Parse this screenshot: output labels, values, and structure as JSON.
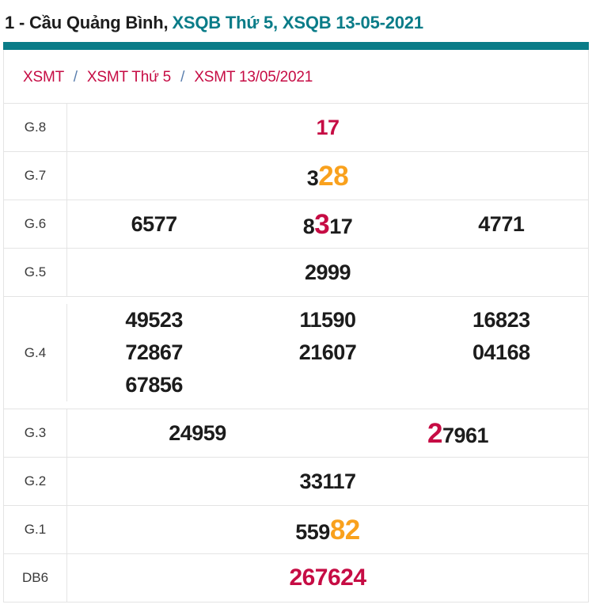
{
  "header": {
    "title_prefix": "1 - Cầu Quảng Bình,",
    "title_highlight": "XSQB Thứ 5, XSQB 13-05-2021"
  },
  "breadcrumb": {
    "separator": "/",
    "items": [
      "XSMT",
      "XSMT Thứ 5",
      "XSMT 13/05/2021"
    ]
  },
  "colors": {
    "teal": "#0a7c88",
    "red": "#c60c44",
    "orange": "#f9a11d",
    "number_ink": "#1c1c1c",
    "separator_blue": "#5b7fae"
  },
  "results": {
    "rows": [
      {
        "label": "G.8",
        "cells": [
          [
            [
              {
                "t": "17",
                "c": "r",
                "s": "n"
              }
            ]
          ]
        ]
      },
      {
        "label": "G.7",
        "cells": [
          [
            [
              {
                "t": "3",
                "c": "k",
                "s": "n"
              },
              {
                "t": "28",
                "c": "o",
                "s": "b"
              }
            ]
          ]
        ]
      },
      {
        "label": "G.6",
        "cells": [
          [
            [
              {
                "t": "6577",
                "c": "k",
                "s": "n"
              }
            ]
          ],
          [
            [
              {
                "t": "8",
                "c": "k",
                "s": "n"
              },
              {
                "t": "3",
                "c": "r",
                "s": "b"
              },
              {
                "t": "17",
                "c": "k",
                "s": "n"
              }
            ]
          ],
          [
            [
              {
                "t": "4771",
                "c": "k",
                "s": "n"
              }
            ]
          ]
        ]
      },
      {
        "label": "G.5",
        "cells": [
          [
            [
              {
                "t": "2999",
                "c": "k",
                "s": "n"
              }
            ]
          ]
        ]
      },
      {
        "label": "G.4",
        "tall": true,
        "cells": [
          [
            [
              {
                "t": "49523",
                "c": "k",
                "s": "n"
              }
            ],
            [
              {
                "t": "72867",
                "c": "k",
                "s": "n"
              }
            ],
            [
              {
                "t": "67856",
                "c": "k",
                "s": "n"
              }
            ]
          ],
          [
            [
              {
                "t": "11590",
                "c": "k",
                "s": "n"
              }
            ],
            [
              {
                "t": "21607",
                "c": "k",
                "s": "n"
              }
            ]
          ],
          [
            [
              {
                "t": "16823",
                "c": "k",
                "s": "n"
              }
            ],
            [
              {
                "t": "04168",
                "c": "k",
                "s": "n"
              }
            ]
          ]
        ]
      },
      {
        "label": "G.3",
        "cells": [
          [
            [
              {
                "t": "24959",
                "c": "k",
                "s": "n"
              }
            ]
          ],
          [
            [
              {
                "t": "2",
                "c": "r",
                "s": "b"
              },
              {
                "t": "7961",
                "c": "k",
                "s": "n"
              }
            ]
          ]
        ]
      },
      {
        "label": "G.2",
        "cells": [
          [
            [
              {
                "t": "33117",
                "c": "k",
                "s": "n"
              }
            ]
          ]
        ]
      },
      {
        "label": "G.1",
        "cells": [
          [
            [
              {
                "t": "559",
                "c": "k",
                "s": "n"
              },
              {
                "t": "82",
                "c": "o",
                "s": "b"
              }
            ]
          ]
        ]
      },
      {
        "label": "DB6",
        "cells": [
          [
            [
              {
                "t": "267624",
                "c": "r",
                "s": "d"
              }
            ]
          ]
        ]
      }
    ]
  }
}
